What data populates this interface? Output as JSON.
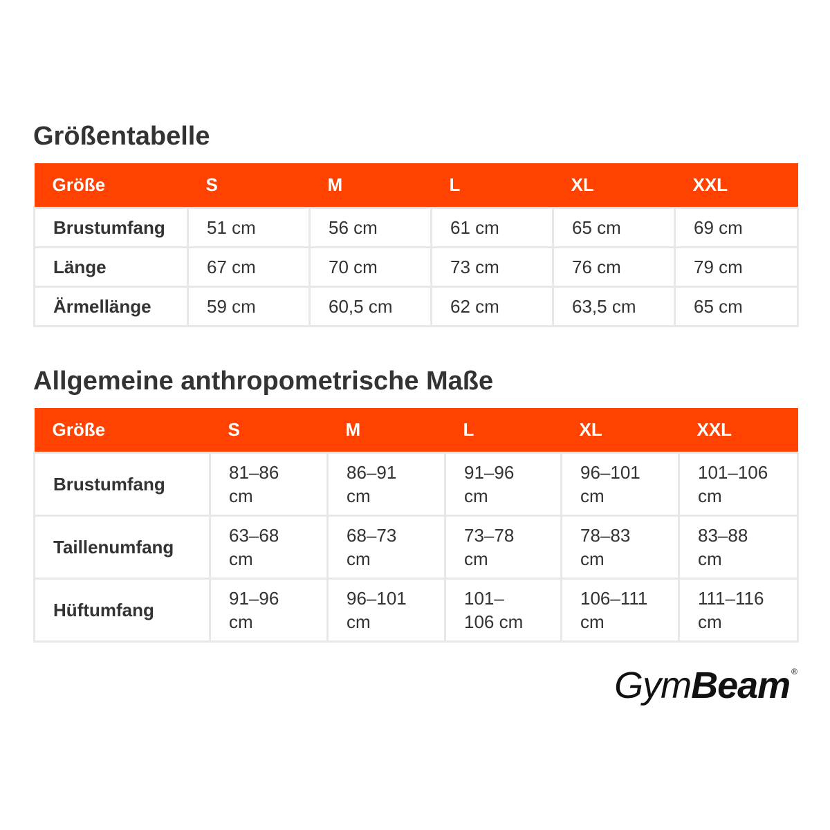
{
  "size_table": {
    "title": "Größentabelle",
    "header": [
      "Größe",
      "S",
      "M",
      "L",
      "XL",
      "XXL"
    ],
    "rows": [
      [
        "Brustumfang",
        "51 cm",
        "56 cm",
        "61 cm",
        "65 cm",
        "69 cm"
      ],
      [
        "Länge",
        "67 cm",
        "70 cm",
        "73 cm",
        "76 cm",
        "79 cm"
      ],
      [
        "Ärmellänge",
        "59 cm",
        "60,5 cm",
        "62 cm",
        "63,5 cm",
        "65 cm"
      ]
    ]
  },
  "body_table": {
    "title": "Allgemeine anthropometrische Maße",
    "header": [
      "Größe",
      "S",
      "M",
      "L",
      "XL",
      "XXL"
    ],
    "rows": [
      [
        "Brustumfang",
        "81–86 cm",
        "86–91 cm",
        "91–96 cm",
        "96–101 cm",
        "101–106 cm"
      ],
      [
        "Taillenumfang",
        "63–68 cm",
        "68–73 cm",
        "73–78 cm",
        "78–83 cm",
        "83–88 cm"
      ],
      [
        "Hüftumfang",
        "91–96 cm",
        "96–101 cm",
        "101–106 cm",
        "106–111 cm",
        "111–116 cm"
      ]
    ]
  },
  "logo": {
    "light": "Gym",
    "bold": "Beam",
    "mark": "®"
  }
}
